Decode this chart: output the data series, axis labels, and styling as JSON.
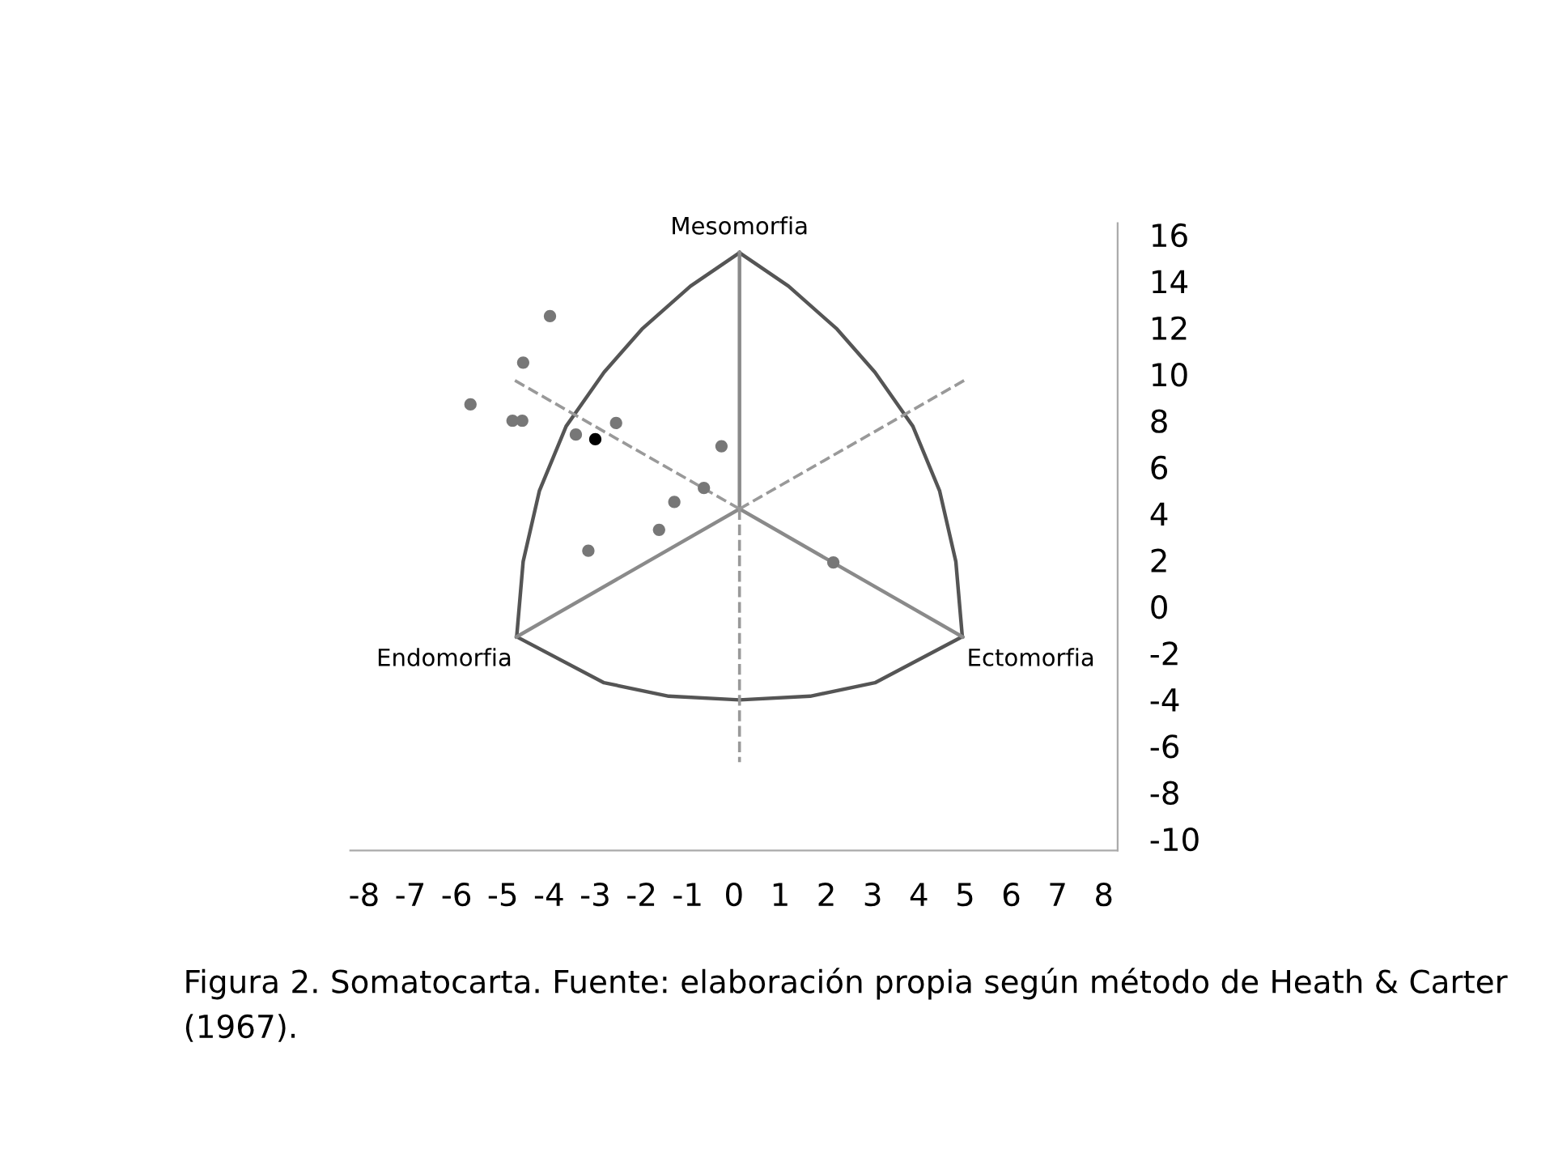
{
  "chart_data": {
    "type": "scatter",
    "xlim": [
      -8.3,
      8.3
    ],
    "ylim": [
      -10.5,
      16.5
    ],
    "xticks": [
      -8,
      -7,
      -6,
      -5,
      -4,
      -3,
      -2,
      -1,
      0,
      1,
      2,
      3,
      4,
      5,
      6,
      7,
      8
    ],
    "yticks": [
      16,
      14,
      12,
      10,
      8,
      6,
      4,
      2,
      0,
      -2,
      -4,
      -6,
      -8,
      -10
    ],
    "grid": false,
    "series": [
      {
        "type": "line",
        "color": "#555555",
        "line_style": "solid",
        "x": [
          0.12,
          -0.94,
          -1.99,
          -2.81,
          -3.63,
          -4.21,
          -4.56,
          -4.7
        ],
        "values": [
          15.23,
          13.79,
          11.94,
          10.08,
          7.76,
          4.97,
          1.94,
          -1.3
        ]
      },
      {
        "type": "line",
        "color": "#555555",
        "line_style": "solid",
        "x": [
          0.12,
          1.18,
          2.23,
          3.05,
          3.87,
          4.45,
          4.8,
          4.94
        ],
        "values": [
          15.23,
          13.79,
          11.94,
          10.08,
          7.76,
          4.97,
          1.94,
          -1.3
        ]
      },
      {
        "type": "line",
        "color": "#555555",
        "line_style": "solid",
        "x": [
          -4.7,
          -2.81,
          -1.41,
          0.12,
          1.65,
          3.05,
          4.94
        ],
        "values": [
          -1.3,
          -3.28,
          -3.86,
          -4.02,
          -3.86,
          -3.28,
          -1.3
        ]
      },
      {
        "type": "line",
        "color": "#8a8a8a",
        "line_style": "solid",
        "x": [
          0.12,
          0.12
        ],
        "values": [
          4.2,
          15.23
        ]
      },
      {
        "type": "line",
        "color": "#8a8a8a",
        "line_style": "solid",
        "x": [
          0.12,
          -4.7
        ],
        "values": [
          4.2,
          -1.3
        ]
      },
      {
        "type": "line",
        "color": "#8a8a8a",
        "line_style": "solid",
        "x": [
          0.12,
          4.94
        ],
        "values": [
          4.2,
          -1.3
        ]
      },
      {
        "type": "line",
        "color": "#999999",
        "line_style": "dashed",
        "x": [
          0.12,
          0.12
        ],
        "values": [
          4.2,
          -6.7
        ]
      },
      {
        "type": "line",
        "color": "#999999",
        "line_style": "dashed",
        "x": [
          0.12,
          -4.74
        ],
        "values": [
          4.2,
          9.73
        ]
      },
      {
        "type": "line",
        "color": "#999999",
        "line_style": "dashed",
        "x": [
          0.12,
          4.98
        ],
        "values": [
          4.2,
          9.73
        ]
      },
      {
        "marker": "circle",
        "color": "#777777",
        "x": [
          -3.98,
          -4.56,
          -5.7,
          -4.79,
          -4.58,
          -2.55,
          -3.42,
          -0.27,
          -0.65,
          -1.29,
          -1.62,
          -3.15,
          2.15
        ],
        "values": [
          12.5,
          10.5,
          8.7,
          8.0,
          8.0,
          7.9,
          7.4,
          6.9,
          5.1,
          4.5,
          3.3,
          2.4,
          1.9
        ]
      },
      {
        "marker": "circle",
        "color": "#000000",
        "x": [
          -3.0
        ],
        "values": [
          7.2
        ]
      }
    ],
    "annotations": [
      {
        "text": "Mesomorfia",
        "x": 0.12,
        "y": 15.23
      },
      {
        "text": "Endomorfia",
        "x": -4.7,
        "y": -1.3
      },
      {
        "text": "Ectomorfia",
        "x": 4.94,
        "y": -1.3
      },
      "Figura 2. Somatocarta. Fuente: elaboración propia según método de Heath & Carter (1967)."
    ]
  }
}
